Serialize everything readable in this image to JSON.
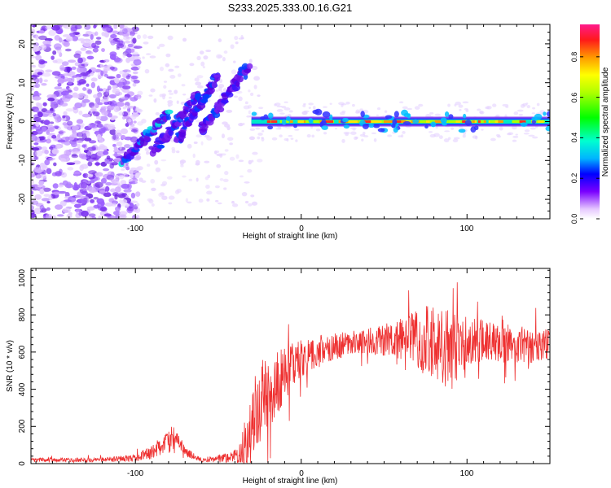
{
  "chart_data": [
    {
      "type": "heatmap",
      "title": "S233.2025.333.00.16.G21",
      "xlabel": "Height of straight line (km)",
      "ylabel": "Frequency (Hz)",
      "xlim": [
        -163,
        150
      ],
      "ylim": [
        -25,
        25
      ],
      "xticks": [
        -100,
        0,
        100
      ],
      "xtick_labels": [
        "-100",
        "0",
        "100"
      ],
      "yticks": [
        -20,
        -10,
        0,
        10,
        20
      ],
      "ytick_labels": [
        "-20",
        "-10",
        "0",
        "10",
        "20"
      ],
      "colorbar": {
        "label": "Normalized spectral amplitude",
        "range": [
          0,
          0.96
        ],
        "ticks": [
          0.0,
          0.2,
          0.4,
          0.6,
          0.8
        ],
        "tick_labels": [
          "0.0",
          "0.2",
          "0.4",
          "0.6",
          "0.8"
        ]
      },
      "features": {
        "carrier_line_freq_hz": 0,
        "carrier_start_km": -30,
        "diagonal_streaks": [
          {
            "x_start_km": -108,
            "f_start_hz": -10,
            "x_end_km": -80,
            "f_end_hz": 2
          },
          {
            "x_start_km": -90,
            "f_start_hz": -8,
            "x_end_km": -62,
            "f_end_hz": 7
          },
          {
            "x_start_km": -75,
            "f_start_hz": -5,
            "x_end_km": -50,
            "f_end_hz": 12
          },
          {
            "x_start_km": -60,
            "f_start_hz": -2,
            "x_end_km": -32,
            "f_end_hz": 14
          }
        ],
        "noise_region_km": [
          -163,
          -110
        ]
      }
    },
    {
      "type": "line",
      "xlabel": "Height of straight line (km)",
      "ylabel": "SNR (10 * v/v)",
      "xlim": [
        -163,
        150
      ],
      "ylim": [
        0,
        1050
      ],
      "xticks": [
        -100,
        0,
        100
      ],
      "xtick_labels": [
        "-100",
        "0",
        "100"
      ],
      "yticks": [
        0,
        200,
        400,
        600,
        800,
        1000
      ],
      "ytick_labels": [
        "0",
        "200",
        "400",
        "600",
        "800",
        "1000"
      ],
      "series_color": "#ee3030",
      "trend": {
        "x": [
          -163,
          -120,
          -100,
          -90,
          -80,
          -75,
          -70,
          -60,
          -45,
          -35,
          -30,
          -25,
          -20,
          -10,
          0,
          10,
          20,
          30,
          40,
          60,
          80,
          90,
          100,
          110,
          130,
          150
        ],
        "y": [
          20,
          20,
          30,
          60,
          120,
          150,
          60,
          20,
          30,
          60,
          250,
          320,
          380,
          480,
          570,
          600,
          630,
          650,
          660,
          670,
          650,
          620,
          650,
          660,
          640,
          630
        ]
      },
      "spread": {
        "x": [
          -163,
          -120,
          -100,
          -85,
          -78,
          -72,
          -60,
          -40,
          -32,
          -25,
          -15,
          0,
          20,
          40,
          60,
          75,
          85,
          95,
          110,
          150
        ],
        "y": [
          12,
          12,
          20,
          45,
          70,
          30,
          12,
          30,
          180,
          230,
          170,
          110,
          70,
          70,
          110,
          200,
          240,
          180,
          110,
          90
        ]
      }
    }
  ]
}
